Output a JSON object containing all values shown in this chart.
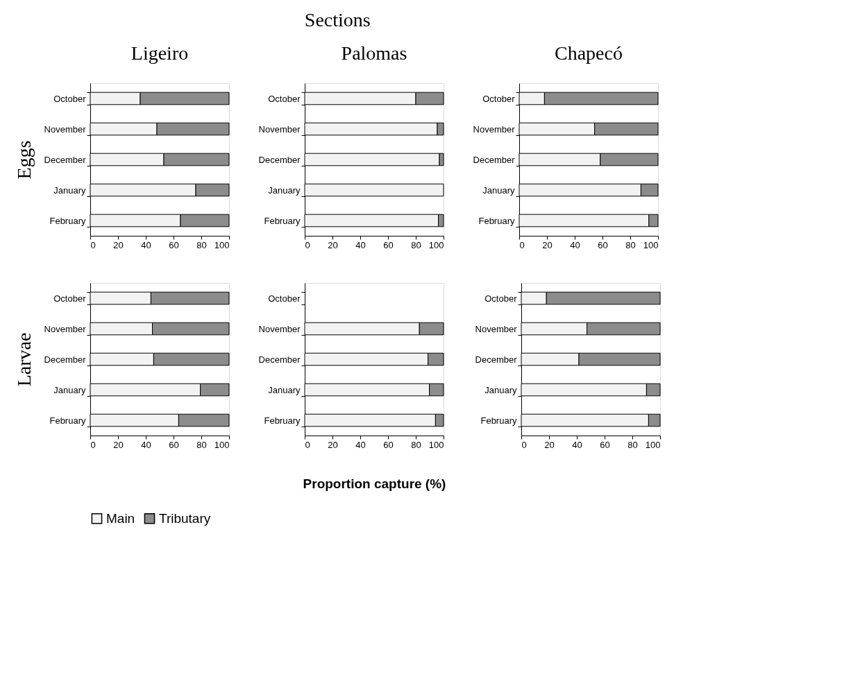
{
  "chart_data": [
    {
      "type": "bar",
      "orientation": "horizontal",
      "stacked": true,
      "title": "Ligeiro",
      "ylabel": "Eggs",
      "legend": "bottom",
      "annotations": [
        "Sections"
      ],
      "categories": [
        "October",
        "November",
        "December",
        "January",
        "February"
      ],
      "series": [
        {
          "name": "Main",
          "color": "#f2f2f2",
          "values": [
            36,
            48,
            53,
            76,
            65
          ]
        },
        {
          "name": "Tributary",
          "color": "#8c8c8c",
          "values": [
            64,
            52,
            47,
            24,
            35
          ]
        }
      ],
      "xlim": [
        0,
        100
      ],
      "xticks": [
        0,
        20,
        40,
        60,
        80,
        100
      ],
      "grid": false
    },
    {
      "type": "bar",
      "orientation": "horizontal",
      "stacked": true,
      "title": "Palomas",
      "categories": [
        "October",
        "November",
        "December",
        "January",
        "February"
      ],
      "series": [
        {
          "name": "Main",
          "color": "#f2f2f2",
          "values": [
            80,
            95.5,
            97,
            100,
            96.3
          ]
        },
        {
          "name": "Tributary",
          "color": "#8c8c8c",
          "values": [
            20,
            4.5,
            3,
            0,
            3.7
          ]
        }
      ],
      "xlim": [
        0,
        100
      ],
      "xticks": [
        0,
        20,
        40,
        60,
        80,
        100
      ],
      "grid": false
    },
    {
      "type": "bar",
      "orientation": "horizontal",
      "stacked": true,
      "title": "Chapecó",
      "categories": [
        "October",
        "November",
        "December",
        "January",
        "February"
      ],
      "series": [
        {
          "name": "Main",
          "color": "#f2f2f2",
          "values": [
            18.2,
            54.3,
            58.4,
            87.7,
            93.4
          ]
        },
        {
          "name": "Tributary",
          "color": "#8c8c8c",
          "values": [
            81.8,
            45.7,
            41.6,
            12.3,
            6.6
          ]
        }
      ],
      "xlim": [
        0,
        100
      ],
      "xticks": [
        0,
        20,
        40,
        60,
        80,
        100
      ],
      "grid": false
    },
    {
      "type": "bar",
      "orientation": "horizontal",
      "stacked": true,
      "ylabel": "Larvae",
      "categories": [
        "October",
        "November",
        "December",
        "January",
        "February"
      ],
      "series": [
        {
          "name": "Main",
          "color": "#f2f2f2",
          "values": [
            43.7,
            44.8,
            45.7,
            79.3,
            63.7
          ]
        },
        {
          "name": "Tributary",
          "color": "#8c8c8c",
          "values": [
            56.3,
            55.2,
            54.3,
            20.7,
            36.3
          ]
        }
      ],
      "xlim": [
        0,
        100
      ],
      "xticks": [
        0,
        20,
        40,
        60,
        80,
        100
      ],
      "grid": false
    },
    {
      "type": "bar",
      "orientation": "horizontal",
      "stacked": true,
      "xlabel": "Proportion capture (%)",
      "categories": [
        "October",
        "November",
        "December",
        "January",
        "February"
      ],
      "series": [
        {
          "name": "Main",
          "color": "#f2f2f2",
          "values": [
            null,
            82.6,
            88.8,
            89.8,
            94.2
          ]
        },
        {
          "name": "Tributary",
          "color": "#8c8c8c",
          "values": [
            null,
            17.4,
            11.2,
            10.2,
            5.8
          ]
        }
      ],
      "xlim": [
        0,
        100
      ],
      "xticks": [
        0,
        20,
        40,
        60,
        80,
        100
      ],
      "grid": false
    },
    {
      "type": "bar",
      "orientation": "horizontal",
      "stacked": true,
      "categories": [
        "October",
        "November",
        "December",
        "January",
        "February"
      ],
      "series": [
        {
          "name": "Main",
          "color": "#f2f2f2",
          "values": [
            18.1,
            47.3,
            41.5,
            90.2,
            91.7
          ]
        },
        {
          "name": "Tributary",
          "color": "#8c8c8c",
          "values": [
            81.9,
            52.7,
            58.5,
            9.8,
            8.3
          ]
        }
      ],
      "xlim": [
        0,
        100
      ],
      "xticks": [
        0,
        20,
        40,
        60,
        80,
        100
      ],
      "grid": false
    }
  ]
}
